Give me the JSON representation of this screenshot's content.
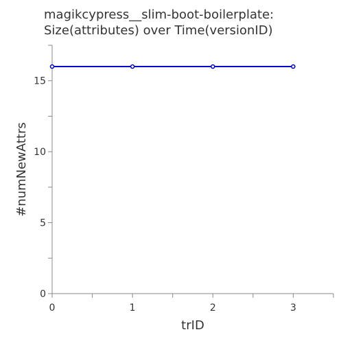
{
  "chart_data": {
    "type": "line",
    "title_lines": [
      "magikcypress__slim-boot-boilerplate:",
      "Size(attributes) over Time(versionID)"
    ],
    "xlabel": "trID",
    "ylabel": "#numNewAttrs",
    "x": [
      0,
      1,
      2,
      3
    ],
    "series": [
      {
        "name": "numNewAttrs",
        "values": [
          16,
          16,
          16,
          16
        ]
      }
    ],
    "xlim": [
      0,
      3.5
    ],
    "ylim": [
      0,
      17.5
    ],
    "x_ticks": [
      0,
      1,
      2,
      3
    ],
    "x_minor_ticks": [
      0.5,
      1.5,
      2.5,
      3.5
    ],
    "y_ticks": [
      0,
      5,
      10,
      15
    ],
    "y_minor_ticks": [
      2.5,
      7.5,
      12.5,
      17.5
    ],
    "line_color": "#0000cc",
    "grid": false,
    "legend": "none"
  }
}
